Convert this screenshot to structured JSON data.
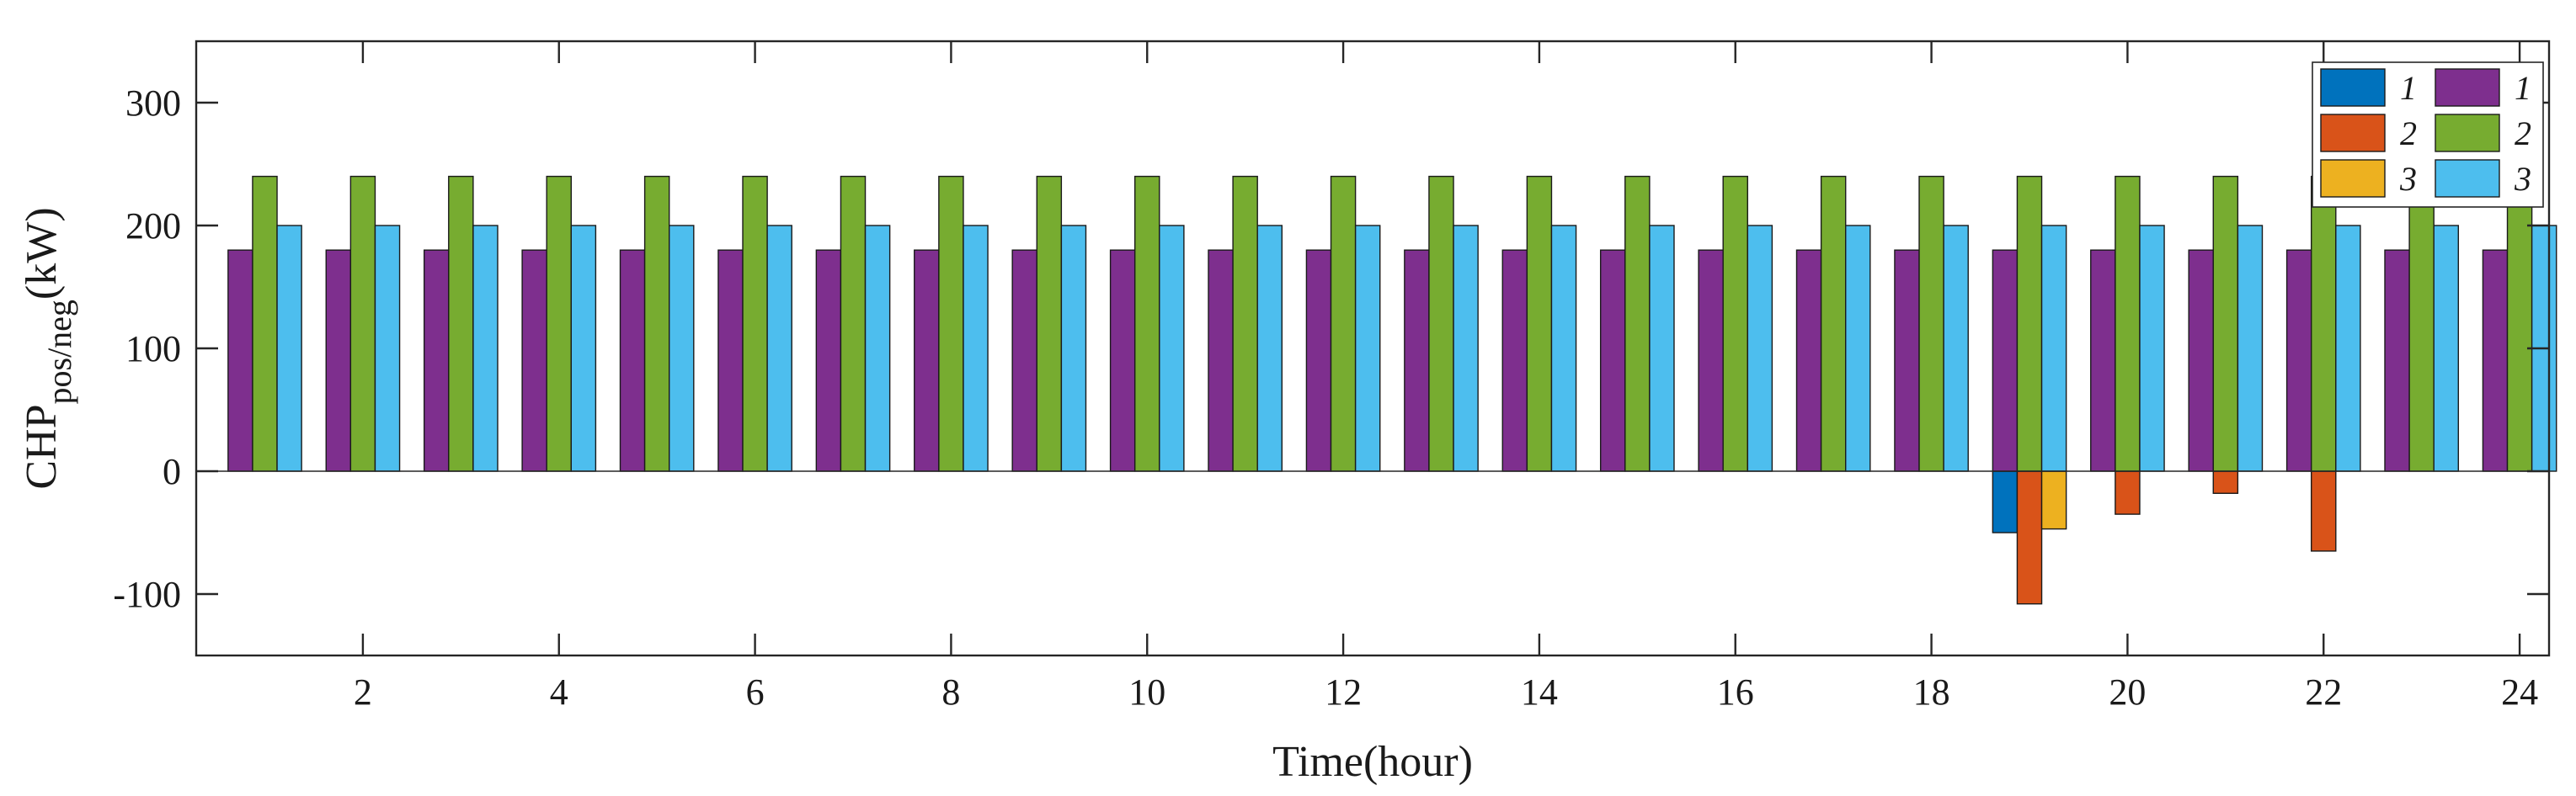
{
  "chart_data": {
    "type": "bar",
    "xlabel": "Time(hour)",
    "ylabel_parts": {
      "main": "CHP",
      "sub": "pos/neg",
      "tail": "(kW)"
    },
    "x": [
      1,
      2,
      3,
      4,
      5,
      6,
      7,
      8,
      9,
      10,
      11,
      12,
      13,
      14,
      15,
      16,
      17,
      18,
      19,
      20,
      21,
      22,
      23,
      24
    ],
    "x_ticks": [
      2,
      4,
      6,
      8,
      10,
      12,
      14,
      16,
      18,
      20,
      22,
      24
    ],
    "xlim": [
      0.3,
      24.3
    ],
    "ylim": [
      -150,
      350
    ],
    "y_ticks": [
      -100,
      0,
      100,
      200,
      300
    ],
    "grid": false,
    "legend_position": "top-right",
    "series": [
      {
        "name": "1",
        "color": "#0072BD",
        "values": [
          0,
          0,
          0,
          0,
          0,
          0,
          0,
          0,
          0,
          0,
          0,
          0,
          0,
          0,
          0,
          0,
          0,
          0,
          -50,
          0,
          0,
          0,
          0,
          0
        ]
      },
      {
        "name": "2",
        "color": "#D95319",
        "values": [
          0,
          0,
          0,
          0,
          0,
          0,
          0,
          0,
          0,
          0,
          0,
          0,
          0,
          0,
          0,
          0,
          0,
          0,
          -108,
          -35,
          -18,
          -65,
          0,
          0
        ]
      },
      {
        "name": "3",
        "color": "#EDB120",
        "values": [
          0,
          0,
          0,
          0,
          0,
          0,
          0,
          0,
          0,
          0,
          0,
          0,
          0,
          0,
          0,
          0,
          0,
          0,
          -47,
          0,
          0,
          0,
          0,
          0
        ]
      },
      {
        "name": "1",
        "color": "#7E2F8E",
        "values": [
          180,
          180,
          180,
          180,
          180,
          180,
          180,
          180,
          180,
          180,
          180,
          180,
          180,
          180,
          180,
          180,
          180,
          180,
          180,
          180,
          180,
          180,
          180,
          180
        ]
      },
      {
        "name": "2",
        "color": "#77AC30",
        "values": [
          240,
          240,
          240,
          240,
          240,
          240,
          240,
          240,
          240,
          240,
          240,
          240,
          240,
          240,
          240,
          240,
          240,
          240,
          240,
          240,
          240,
          240,
          240,
          240
        ]
      },
      {
        "name": "3",
        "color": "#4DBEEE",
        "values": [
          200,
          200,
          200,
          200,
          200,
          200,
          200,
          200,
          200,
          200,
          200,
          200,
          200,
          200,
          200,
          200,
          200,
          200,
          200,
          200,
          200,
          200,
          200,
          200
        ]
      }
    ]
  }
}
